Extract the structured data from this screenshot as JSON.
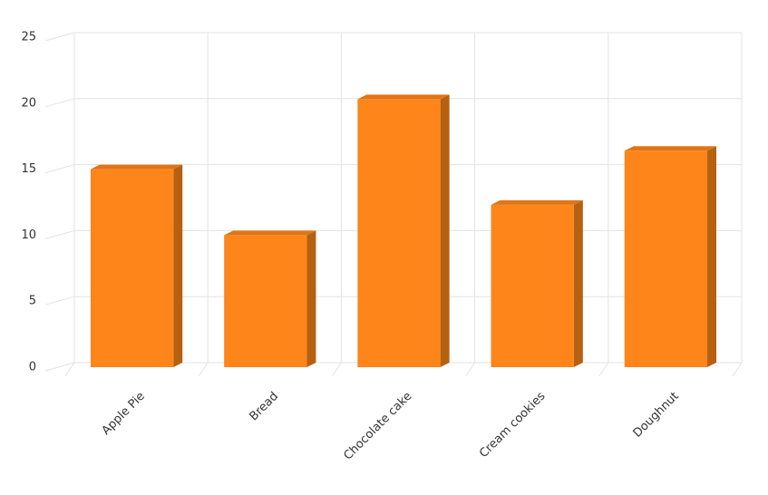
{
  "chart_data": {
    "type": "bar",
    "categories": [
      "Apple Pie",
      "Bread",
      "Chocolate cake",
      "Cream cookies",
      "Doughnut"
    ],
    "values": [
      15,
      10,
      20.3,
      12.3,
      16.4
    ],
    "color": "#fd8519",
    "ylim": [
      0,
      25
    ],
    "yticks": [
      0,
      5,
      10,
      15,
      20,
      25
    ],
    "grid": true
  }
}
